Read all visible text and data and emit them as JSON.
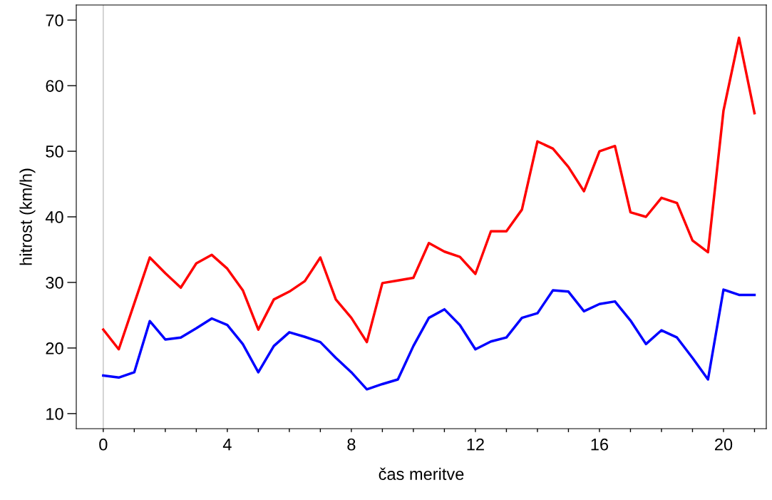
{
  "chart_data": {
    "type": "line",
    "xlabel": "čas meritve",
    "ylabel": "hitrost (km/h)",
    "x": [
      0,
      0.5,
      1,
      1.5,
      2,
      2.5,
      3,
      3.5,
      4,
      4.5,
      5,
      5.5,
      6,
      6.5,
      7,
      7.5,
      8,
      8.5,
      9,
      9.5,
      10,
      10.5,
      11,
      11.5,
      12,
      12.5,
      13,
      13.5,
      14,
      14.5,
      15,
      15.5,
      16,
      16.5,
      17,
      17.5,
      18,
      18.5,
      19,
      19.5,
      20,
      20.5,
      21
    ],
    "series": [
      {
        "color": "#ff0000",
        "values": [
          22.8,
          19.8,
          26.8,
          33.8,
          31.4,
          29.2,
          32.9,
          34.2,
          32.1,
          28.8,
          22.8,
          27.4,
          28.6,
          30.2,
          33.8,
          27.4,
          24.6,
          20.9,
          29.9,
          30.3,
          30.7,
          36.0,
          34.7,
          33.9,
          31.3,
          37.8,
          37.8,
          41.1,
          51.5,
          50.4,
          47.6,
          43.9,
          50.0,
          50.8,
          40.7,
          40.0,
          42.9,
          42.1,
          36.4,
          34.6,
          56.2,
          67.3,
          55.8
        ]
      },
      {
        "color": "#0000ff",
        "values": [
          15.8,
          15.5,
          16.3,
          24.1,
          21.3,
          21.6,
          23.0,
          24.5,
          23.5,
          20.6,
          16.3,
          20.3,
          22.4,
          21.7,
          20.9,
          18.5,
          16.3,
          13.7,
          14.5,
          15.2,
          20.3,
          24.6,
          25.9,
          23.5,
          19.8,
          21.0,
          21.6,
          24.6,
          25.3,
          28.8,
          28.6,
          25.6,
          26.7,
          27.1,
          24.2,
          20.6,
          22.7,
          21.6,
          18.5,
          15.2,
          28.9,
          28.1,
          28.1
        ]
      }
    ],
    "xlim": [
      -0.87,
      21.38
    ],
    "ylim": [
      7.7,
      72.3
    ],
    "xticks": [
      0,
      {
        "value": 1,
        "label": null
      },
      {
        "value": 2,
        "label": null
      },
      {
        "value": 3,
        "label": null
      },
      4,
      {
        "value": 5,
        "label": null
      },
      {
        "value": 6,
        "label": null
      },
      {
        "value": 7,
        "label": null
      },
      8,
      {
        "value": 9,
        "label": null
      },
      {
        "value": 10,
        "label": null
      },
      {
        "value": 11,
        "label": null
      },
      12,
      {
        "value": 13,
        "label": null
      },
      {
        "value": 14,
        "label": null
      },
      {
        "value": 15,
        "label": null
      },
      16,
      {
        "value": 17,
        "label": null
      },
      {
        "value": 18,
        "label": null
      },
      {
        "value": 19,
        "label": null
      },
      20,
      {
        "value": 21,
        "label": null
      }
    ],
    "yticks": [
      10,
      20,
      30,
      40,
      50,
      60,
      70
    ],
    "ref_lines": [
      {
        "axis": "x",
        "value": 0,
        "color": "#cccccc"
      }
    ],
    "grid": false,
    "legend": false,
    "marker": "none",
    "line_style": "solid"
  }
}
